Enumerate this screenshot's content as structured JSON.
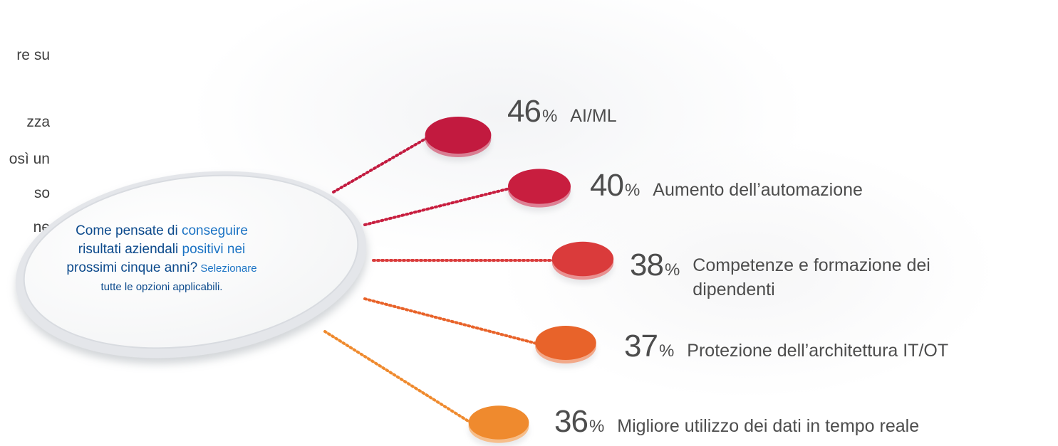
{
  "left_fragments": [
    "re su",
    "zza",
    "osì un",
    "so",
    "ne"
  ],
  "question": {
    "part1": "Come pensate di ",
    "part1_hl": "conseguire",
    "part2": "risultati aziendali ",
    "part2_hl": "positivi nei",
    "part3": "prossimi cinque anni?",
    "part3_small": " Selezionare",
    "part4_small": "tutte le opzioni applicabili."
  },
  "pct_sign": "%",
  "chart_data": {
    "type": "bar",
    "categories": [
      "AI/ML",
      "Aumento dell’automazione",
      "Competenze e formazione dei dipendenti",
      "Protezione dell’architettura IT/OT",
      "Migliore utilizzo dei dati in tempo reale"
    ],
    "values": [
      46,
      40,
      38,
      37,
      36
    ],
    "values_display": [
      "46",
      "40",
      "38",
      "37",
      "36"
    ],
    "units": "%",
    "colors": [
      "#c21a3f",
      "#c81e3f",
      "#da3b3b",
      "#e8632a",
      "#ef8a2e"
    ]
  }
}
